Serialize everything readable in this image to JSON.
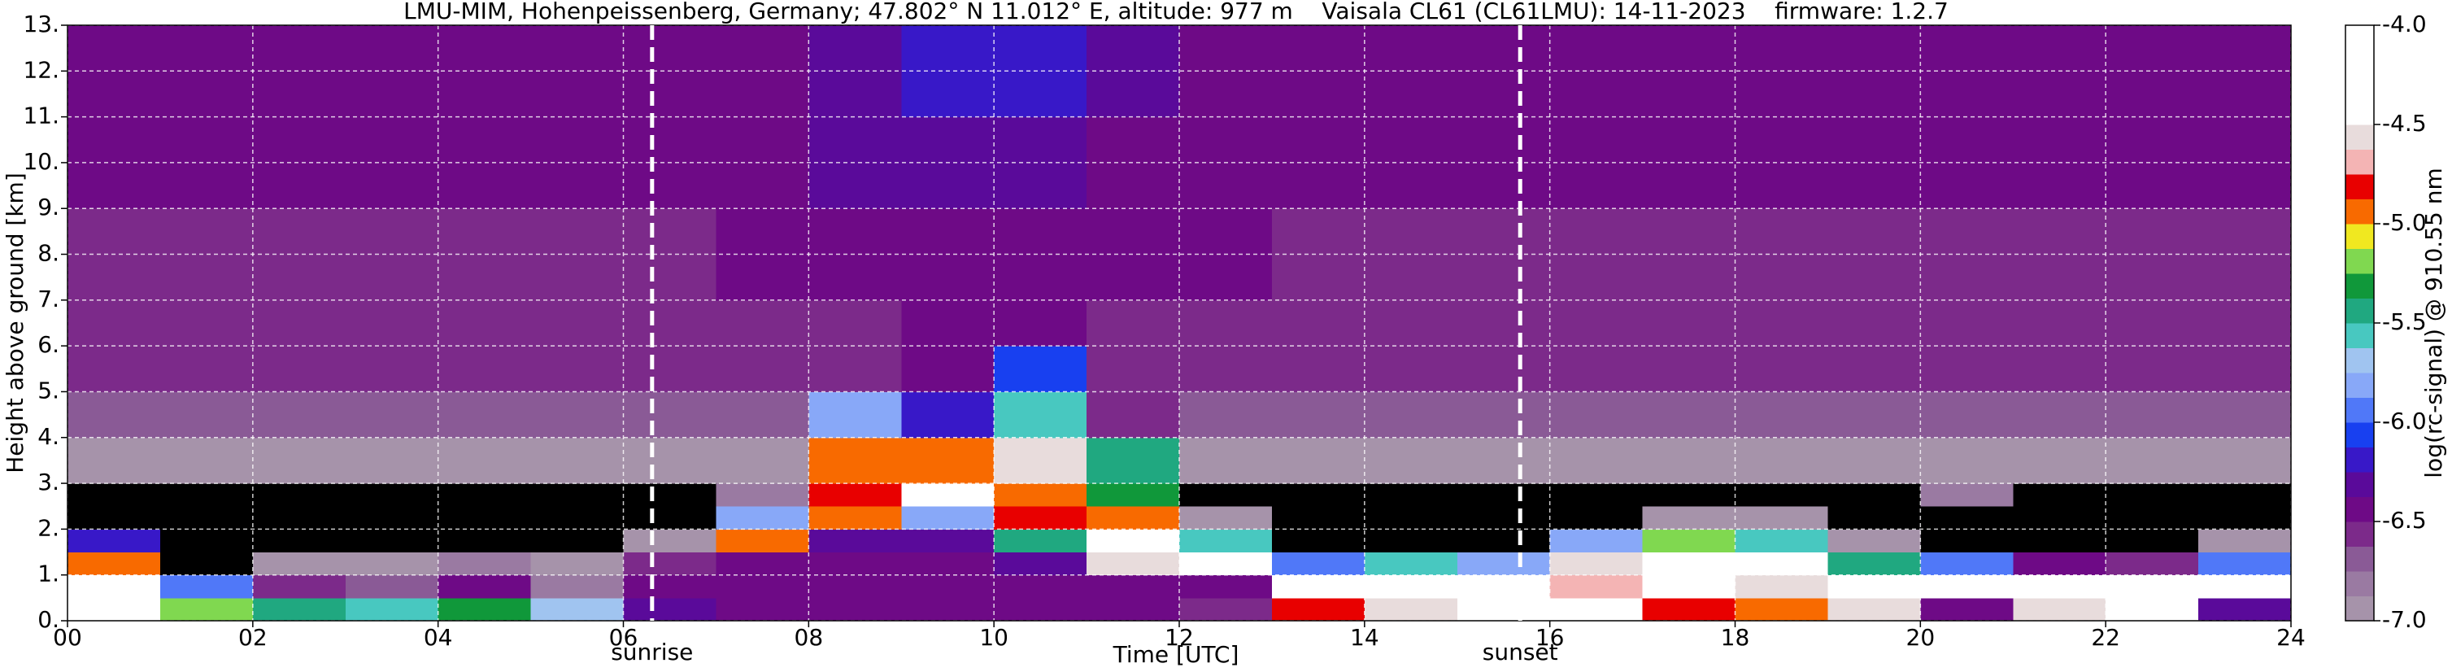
{
  "chart_data": {
    "type": "heatmap",
    "title": "LMU-MIM, Hohenpeissenberg, Germany; 47.802° N 11.012° E, altitude: 977 m    Vaisala CL61 (CL61LMU): 14-11-2023    firmware: 1.2.7",
    "x_label": "Time [UTC]",
    "y_label": "Height above ground [km]",
    "colorbar_label": "log(rc-signal) @ 910.55 nm",
    "xlim": [
      0,
      24
    ],
    "ylim": [
      0,
      13
    ],
    "xticks": [
      {
        "value": 0,
        "label": "00"
      },
      {
        "value": 2,
        "label": "02"
      },
      {
        "value": 4,
        "label": "04"
      },
      {
        "value": 6,
        "label": "06"
      },
      {
        "value": 8,
        "label": "08"
      },
      {
        "value": 10,
        "label": "10"
      },
      {
        "value": 12,
        "label": "12"
      },
      {
        "value": 14,
        "label": "14"
      },
      {
        "value": 16,
        "label": "16"
      },
      {
        "value": 18,
        "label": "18"
      },
      {
        "value": 20,
        "label": "20"
      },
      {
        "value": 22,
        "label": "22"
      },
      {
        "value": 24,
        "label": "24"
      }
    ],
    "yticks": [
      {
        "value": 0,
        "label": "0."
      },
      {
        "value": 1,
        "label": "1."
      },
      {
        "value": 2,
        "label": "2."
      },
      {
        "value": 3,
        "label": "3."
      },
      {
        "value": 4,
        "label": "4."
      },
      {
        "value": 5,
        "label": "5."
      },
      {
        "value": 6,
        "label": "6."
      },
      {
        "value": 7,
        "label": "7."
      },
      {
        "value": 8,
        "label": "8."
      },
      {
        "value": 9,
        "label": "9."
      },
      {
        "value": 10,
        "label": "10."
      },
      {
        "value": 11,
        "label": "11."
      },
      {
        "value": 12,
        "label": "12."
      },
      {
        "value": 13,
        "label": "13."
      }
    ],
    "grid": true,
    "clim": [
      -7,
      -4
    ],
    "cticks": [
      {
        "value": -7,
        "label": "-7.0"
      },
      {
        "value": -6.5,
        "label": "-6.5"
      },
      {
        "value": -6,
        "label": "-6.0"
      },
      {
        "value": -5.5,
        "label": "-5.5"
      },
      {
        "value": -5,
        "label": "-5.0"
      },
      {
        "value": -4.5,
        "label": "-4.5"
      },
      {
        "value": -4,
        "label": "-4.0"
      }
    ],
    "under_color": "#000000",
    "colormap": [
      "#a693aa",
      "#9a7aa2",
      "#8a5a96",
      "#7c2a8a",
      "#6e0a86",
      "#5a0a9a",
      "#3818c8",
      "#1840f0",
      "#5078f8",
      "#88a8f8",
      "#a0c4f0",
      "#48c8c0",
      "#20a880",
      "#10983a",
      "#80d850",
      "#f0e820",
      "#f86a00",
      "#e80000",
      "#f4b4b4",
      "#e8dcdc",
      "#ffffff",
      "#ffffff",
      "#ffffff",
      "#ffffff"
    ],
    "vlines": [
      {
        "x": 6.31,
        "label": "sunrise"
      },
      {
        "x": 15.68,
        "label": "sunset"
      }
    ],
    "xbins": [
      0,
      1,
      2,
      3,
      4,
      5,
      6,
      7,
      8,
      9,
      10,
      11,
      12,
      13,
      14,
      15,
      16,
      17,
      18,
      19,
      20,
      21,
      22,
      23,
      24
    ],
    "ybins": [
      0,
      0.5,
      1,
      1.5,
      2,
      2.5,
      3,
      4,
      5,
      6,
      7,
      9,
      11,
      13
    ],
    "z": [
      [
        -4.2,
        -4.4,
        -4.9,
        -6.2,
        -7.1,
        -7.2,
        -6.9,
        -6.7,
        -6.6,
        -6.6,
        -6.6,
        -6.5,
        -6.5
      ],
      [
        -5.2,
        -6.0,
        -7.1,
        -7.2,
        -7.2,
        -7.2,
        -6.9,
        -6.7,
        -6.6,
        -6.6,
        -6.6,
        -6.5,
        -6.5
      ],
      [
        -5.4,
        -6.6,
        -6.9,
        -7.1,
        -7.2,
        -7.2,
        -6.9,
        -6.7,
        -6.6,
        -6.6,
        -6.6,
        -6.5,
        -6.5
      ],
      [
        -5.6,
        -6.7,
        -7.0,
        -7.1,
        -7.2,
        -7.2,
        -6.9,
        -6.7,
        -6.6,
        -6.6,
        -6.6,
        -6.5,
        -6.5
      ],
      [
        -5.3,
        -6.5,
        -6.8,
        -7.1,
        -7.2,
        -7.2,
        -6.9,
        -6.7,
        -6.6,
        -6.6,
        -6.6,
        -6.5,
        -6.5
      ],
      [
        -5.7,
        -6.8,
        -7.0,
        -7.2,
        -7.2,
        -7.2,
        -6.9,
        -6.7,
        -6.6,
        -6.6,
        -6.6,
        -6.5,
        -6.5
      ],
      [
        -6.3,
        -6.5,
        -6.6,
        -7.0,
        -7.2,
        -7.2,
        -6.9,
        -6.7,
        -6.6,
        -6.6,
        -6.6,
        -6.5,
        -6.5
      ],
      [
        -6.4,
        -6.4,
        -6.5,
        -5.0,
        -5.8,
        -6.8,
        -6.9,
        -6.7,
        -6.6,
        -6.6,
        -6.5,
        -6.4,
        -6.4
      ],
      [
        -6.4,
        -6.4,
        -6.4,
        -6.3,
        -5.0,
        -4.8,
        -4.9,
        -5.8,
        -6.6,
        -6.6,
        -6.5,
        -6.3,
        -6.3
      ],
      [
        -6.5,
        -6.4,
        -6.4,
        -6.3,
        -5.8,
        -4.4,
        -5.0,
        -6.2,
        -6.5,
        -6.5,
        -6.4,
        -6.3,
        -6.2
      ],
      [
        -6.5,
        -6.4,
        -6.3,
        -5.5,
        -4.8,
        -4.9,
        -4.6,
        -5.6,
        -6.1,
        -6.5,
        -6.4,
        -6.3,
        -6.2
      ],
      [
        -6.5,
        -6.4,
        -4.6,
        -4.3,
        -5.0,
        -5.3,
        -5.5,
        -6.6,
        -6.6,
        -6.6,
        -6.5,
        -6.4,
        -6.3
      ],
      [
        -6.6,
        -6.4,
        -4.4,
        -5.6,
        -7.0,
        -7.1,
        -6.9,
        -6.7,
        -6.6,
        -6.6,
        -6.5,
        -6.5,
        -6.4
      ],
      [
        -4.8,
        -4.3,
        -6.0,
        -7.1,
        -7.2,
        -7.2,
        -6.9,
        -6.7,
        -6.6,
        -6.6,
        -6.6,
        -6.5,
        -6.5
      ],
      [
        -4.6,
        -4.4,
        -5.6,
        -7.1,
        -7.2,
        -7.2,
        -6.9,
        -6.7,
        -6.6,
        -6.6,
        -6.6,
        -6.5,
        -6.5
      ],
      [
        -4.5,
        -4.4,
        -5.8,
        -7.1,
        -7.2,
        -7.2,
        -6.9,
        -6.7,
        -6.6,
        -6.6,
        -6.6,
        -6.5,
        -6.5
      ],
      [
        -4.5,
        -4.7,
        -4.6,
        -5.8,
        -7.1,
        -7.2,
        -6.9,
        -6.7,
        -6.6,
        -6.6,
        -6.6,
        -6.5,
        -6.5
      ],
      [
        -4.8,
        -4.5,
        -4.5,
        -5.2,
        -6.9,
        -7.2,
        -6.9,
        -6.7,
        -6.6,
        -6.6,
        -6.6,
        -6.5,
        -6.5
      ],
      [
        -4.9,
        -4.6,
        -4.4,
        -5.6,
        -7.0,
        -7.2,
        -6.9,
        -6.7,
        -6.6,
        -6.6,
        -6.6,
        -6.5,
        -6.5
      ],
      [
        -4.6,
        -4.3,
        -5.4,
        -7.0,
        -7.2,
        -7.2,
        -6.9,
        -6.7,
        -6.6,
        -6.6,
        -6.6,
        -6.5,
        -6.5
      ],
      [
        -6.5,
        -4.4,
        -6.0,
        -7.1,
        -7.2,
        -6.8,
        -6.9,
        -6.7,
        -6.6,
        -6.6,
        -6.6,
        -6.5,
        -6.5
      ],
      [
        -4.6,
        -4.4,
        -6.4,
        -7.1,
        -7.2,
        -7.2,
        -6.9,
        -6.7,
        -6.6,
        -6.6,
        -6.6,
        -6.5,
        -6.5
      ],
      [
        -4.5,
        -4.5,
        -6.6,
        -7.1,
        -7.2,
        -7.2,
        -6.9,
        -6.7,
        -6.6,
        -6.6,
        -6.6,
        -6.5,
        -6.5
      ],
      [
        -6.3,
        -4.5,
        -6.0,
        -7.0,
        -7.2,
        -7.2,
        -6.9,
        -6.7,
        -6.6,
        -6.6,
        -6.6,
        -6.5,
        -6.5
      ]
    ]
  }
}
